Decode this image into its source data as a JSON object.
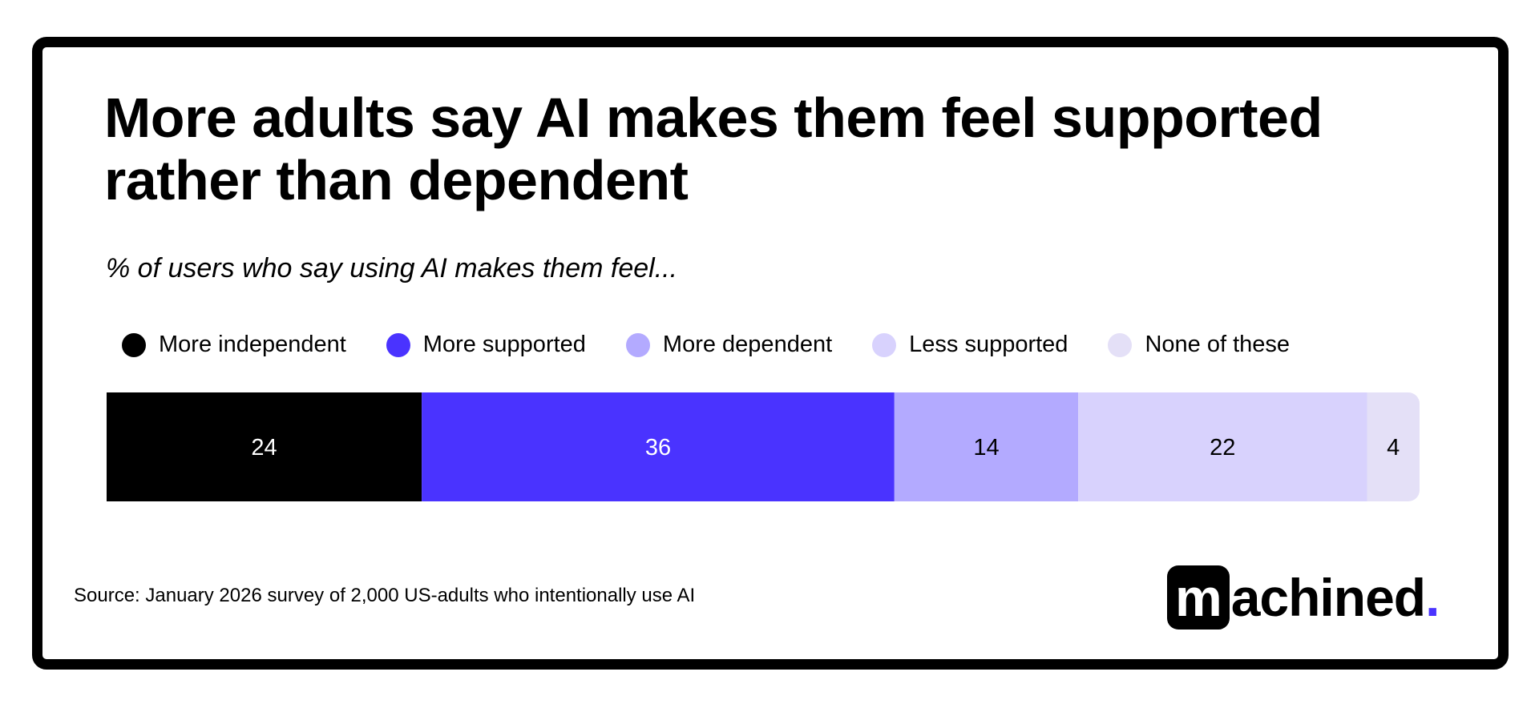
{
  "title": "More adults say AI makes them feel supported rather than dependent",
  "subtitle": "% of users who say using AI makes them feel...",
  "source": "Source:  January 2026 survey of 2,000 US-adults who intentionally use AI",
  "logo": {
    "boxed": "m",
    "rest": "achined",
    "dot": "."
  },
  "chart_data": {
    "type": "bar",
    "orientation": "horizontal-stacked",
    "title": "More adults say AI makes them feel supported rather than dependent",
    "subtitle": "% of users who say using AI makes them feel...",
    "legend_position": "top",
    "grid": false,
    "xlim": [
      0,
      100
    ],
    "series": [
      {
        "name": "More independent",
        "value": 24,
        "color": "#000000",
        "label_color": "#ffffff"
      },
      {
        "name": "More supported",
        "value": 36,
        "color": "#4a33ff",
        "label_color": "#ffffff"
      },
      {
        "name": "More dependent",
        "value": 14,
        "color": "#b3aaff",
        "label_color": "#000000"
      },
      {
        "name": "Less supported",
        "value": 22,
        "color": "#d8d2fd",
        "label_color": "#000000"
      },
      {
        "name": "None of these",
        "value": 4,
        "color": "#e4e0f7",
        "label_color": "#000000"
      }
    ]
  }
}
